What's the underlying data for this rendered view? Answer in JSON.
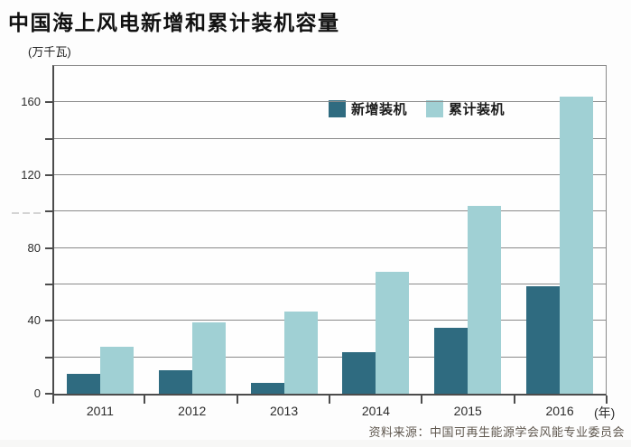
{
  "page": {
    "title": "中国海上风电新增和累计装机容量",
    "y_axis_unit": "(万千瓦)",
    "x_axis_unit": "(年)",
    "source_note": "资料来源：中国可再生能源学会风能专业委员会"
  },
  "colors": {
    "new_series": "#2f6b80",
    "cumulative_series": "#a0d0d4",
    "grid": "#8a8a8a",
    "axis": "#4c4c4c",
    "title_text": "#111111",
    "label_text": "#2b2b2b",
    "source_text": "#5f574e"
  },
  "chart_data": {
    "type": "bar",
    "title": "中国海上风电新增和累计装机容量",
    "ylabel": "万千瓦",
    "xlabel": "年",
    "categories": [
      "2011",
      "2012",
      "2013",
      "2014",
      "2015",
      "2016"
    ],
    "series": [
      {
        "name": "新增装机",
        "color": "#2f6b80",
        "values": [
          11,
          13,
          6,
          23,
          36,
          59
        ]
      },
      {
        "name": "累计装机",
        "color": "#a0d0d4",
        "values": [
          26,
          39,
          45,
          67,
          103,
          163
        ]
      }
    ],
    "ylim": [
      0,
      180
    ],
    "ytick_step": 20,
    "ytick_label_step": 40,
    "ytick_labels": [
      "0",
      "40",
      "80",
      "120",
      "160"
    ],
    "grid": true,
    "legend_position": "top-center"
  }
}
